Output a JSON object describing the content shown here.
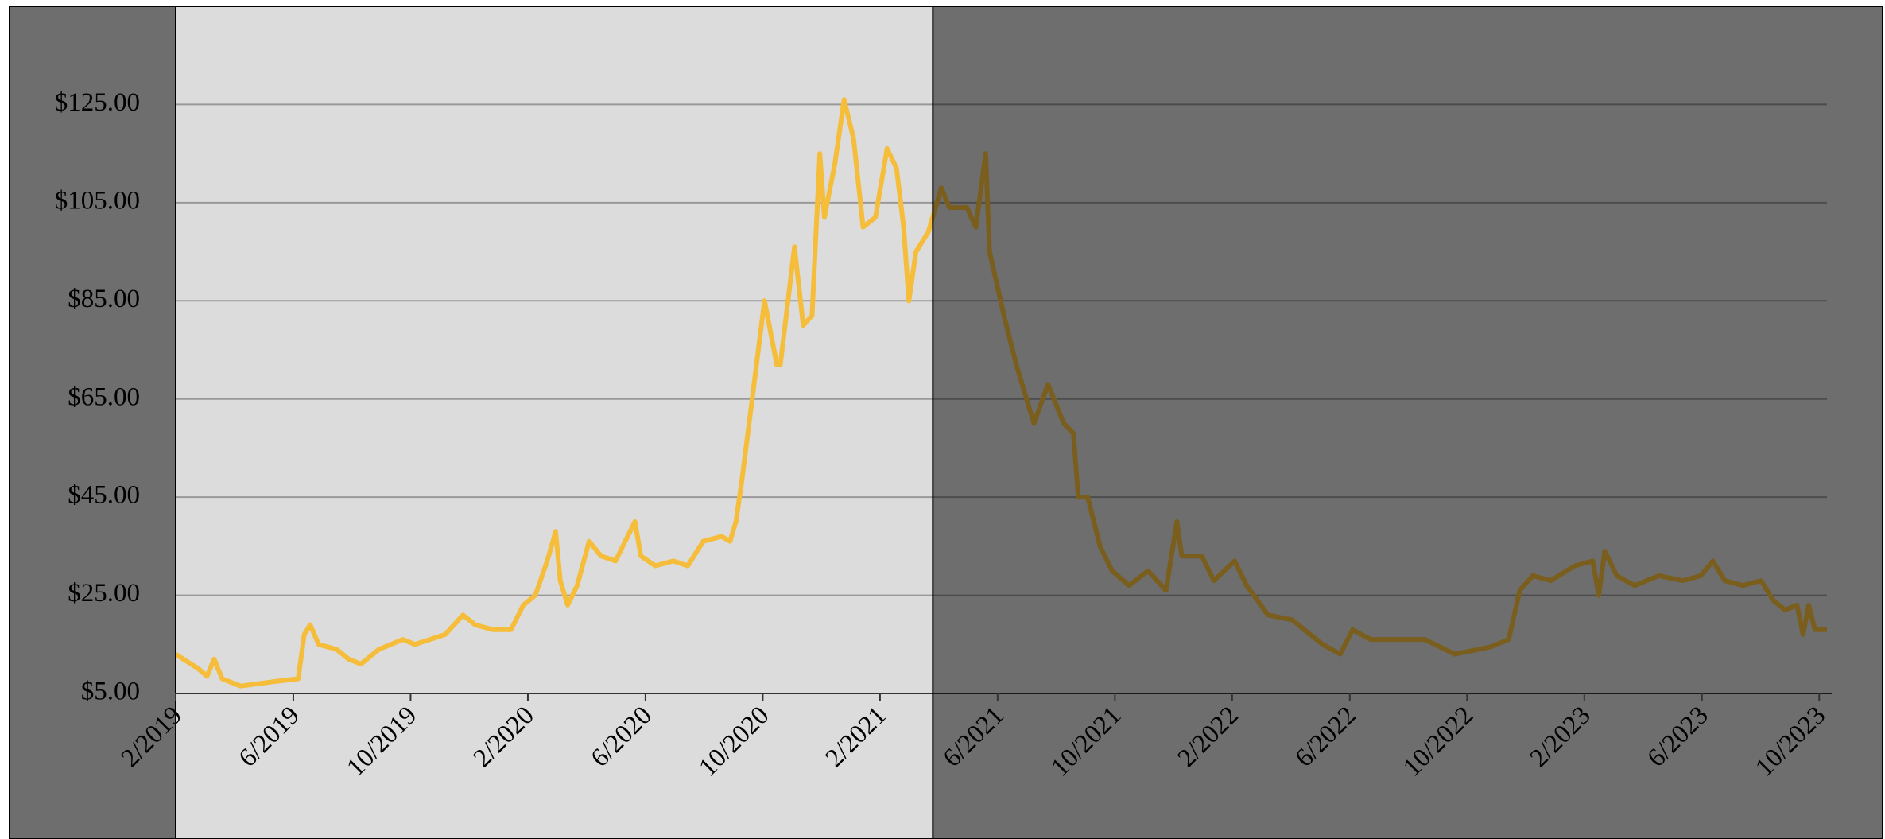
{
  "chart_data": {
    "type": "line",
    "x": [
      2019.083,
      2019.148,
      2019.172,
      2019.192,
      2019.215,
      2019.267,
      2019.318,
      2019.37,
      2019.431,
      2019.448,
      2019.465,
      2019.489,
      2019.54,
      2019.574,
      2019.609,
      2019.66,
      2019.728,
      2019.762,
      2019.848,
      2019.899,
      2019.933,
      2019.984,
      2020.035,
      2020.07,
      2020.104,
      2020.138,
      2020.162,
      2020.175,
      2020.196,
      2020.223,
      2020.257,
      2020.291,
      2020.332,
      2020.387,
      2020.404,
      2020.445,
      2020.496,
      2020.537,
      2020.581,
      2020.633,
      2020.657,
      2020.674,
      2020.69,
      2020.72,
      2020.755,
      2020.79,
      2020.8,
      2020.84,
      2020.865,
      2020.89,
      2020.912,
      2020.925,
      2020.955,
      2020.981,
      2021.008,
      2021.035,
      2021.07,
      2021.103,
      2021.13,
      2021.15,
      2021.165,
      2021.185,
      2021.22,
      2021.257,
      2021.28,
      2021.33,
      2021.355,
      2021.383,
      2021.394,
      2021.435,
      2021.47,
      2021.52,
      2021.56,
      2021.605,
      2021.632,
      2021.646,
      2021.673,
      2021.708,
      2021.742,
      2021.79,
      2021.844,
      2021.895,
      2021.926,
      2021.94,
      2021.997,
      2022.031,
      2022.09,
      2022.124,
      2022.185,
      2022.253,
      2022.34,
      2022.39,
      2022.425,
      2022.476,
      2022.58,
      2022.63,
      2022.715,
      2022.817,
      2022.868,
      2022.9,
      2022.937,
      2022.988,
      2023.056,
      2023.107,
      2023.124,
      2023.141,
      2023.175,
      2023.226,
      2023.295,
      2023.363,
      2023.414,
      2023.448,
      2023.482,
      2023.533,
      2023.585,
      2023.619,
      2023.653,
      2023.687,
      2023.704,
      2023.72,
      2023.738,
      2023.772
    ],
    "values": [
      13,
      10,
      8.5,
      12,
      8,
      6.5,
      7,
      7.5,
      8,
      17,
      19,
      15,
      14,
      12,
      11,
      14,
      16,
      15,
      17,
      21,
      19,
      18,
      18,
      23,
      25,
      32,
      38,
      28,
      23,
      27,
      36,
      33,
      32,
      40,
      33,
      31,
      32,
      31,
      36,
      37,
      36,
      40,
      48,
      65,
      85,
      72,
      72,
      96,
      80,
      82,
      115,
      102,
      113,
      126,
      118,
      100,
      102,
      116,
      112,
      100,
      85,
      95,
      99,
      108,
      104,
      104,
      100,
      115,
      95,
      82,
      72,
      60,
      68,
      60,
      58,
      45,
      45,
      35,
      30,
      27,
      30,
      26,
      40,
      33,
      33,
      28,
      32,
      27,
      21,
      20,
      15,
      13,
      18,
      16,
      16,
      16,
      13,
      14.5,
      16,
      26,
      29,
      28,
      31,
      32,
      25,
      34,
      29,
      27,
      29,
      28,
      29,
      32,
      28,
      27,
      28,
      24,
      22,
      23,
      17,
      23,
      18,
      18
    ],
    "color": "#f5bd3a",
    "xlim": [
      2019.083,
      2023.772
    ],
    "ylim": [
      5,
      145
    ],
    "yticks": [
      {
        "value": 5,
        "label": "$5.00"
      },
      {
        "value": 25,
        "label": "$25.00"
      },
      {
        "value": 45,
        "label": "$45.00"
      },
      {
        "value": 65,
        "label": "$65.00"
      },
      {
        "value": 85,
        "label": "$85.00"
      },
      {
        "value": 105,
        "label": "$105.00"
      },
      {
        "value": 125,
        "label": "$125.00"
      }
    ],
    "xticks": [
      {
        "value": 2019.083,
        "label": "2/2019"
      },
      {
        "value": 2019.417,
        "label": "6/2019"
      },
      {
        "value": 2019.75,
        "label": "10/2019"
      },
      {
        "value": 2020.083,
        "label": "2/2020"
      },
      {
        "value": 2020.417,
        "label": "6/2020"
      },
      {
        "value": 2020.75,
        "label": "10/2020"
      },
      {
        "value": 2021.083,
        "label": "2/2021"
      },
      {
        "value": 2021.417,
        "label": "6/2021"
      },
      {
        "value": 2021.75,
        "label": "10/2021"
      },
      {
        "value": 2022.083,
        "label": "2/2022"
      },
      {
        "value": 2022.417,
        "label": "6/2022"
      },
      {
        "value": 2022.75,
        "label": "10/2022"
      },
      {
        "value": 2023.083,
        "label": "2/2023"
      },
      {
        "value": 2023.417,
        "label": "6/2023"
      },
      {
        "value": 2023.75,
        "label": "10/2023"
      }
    ],
    "grid": true,
    "highlight": {
      "xlim": [
        2019.083,
        2021.233
      ]
    }
  }
}
